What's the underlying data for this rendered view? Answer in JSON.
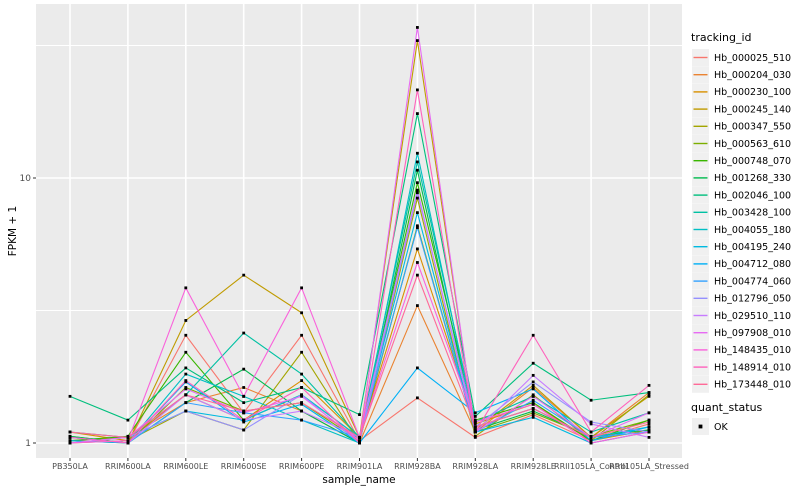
{
  "chart_data": {
    "type": "line",
    "title": "",
    "xlabel": "sample_name",
    "ylabel": "FPKM + 1",
    "y_scale": "log10",
    "y_ticks": [
      1,
      10
    ],
    "y_minor_ticks": [
      3.162,
      31.62
    ],
    "ylim": [
      0.95,
      40
    ],
    "grid": true,
    "legend_position": "right",
    "legend_title": "tracking_id",
    "quant_legend": {
      "title": "quant_status",
      "items": [
        "OK"
      ],
      "marker_color": "#000000"
    },
    "point_color": "#000000",
    "panel_background": "#EBEBEB",
    "grid_color": "#FFFFFF",
    "tick_label_color": "#4D4D4D",
    "categories": [
      "PB350LA",
      "RRIM600LA",
      "RRIM600LE",
      "RRIM600SE",
      "RRIM600PE",
      "RRIM901LA",
      "RRIM928BA",
      "RRIM928LA",
      "RRIM928LE",
      "RRII105LA_Control",
      "RRII105LA_Stressed"
    ],
    "series": [
      {
        "name": "Hb_000025_510",
        "color": "#F8766D",
        "values": [
          1.05,
          1.0,
          2.55,
          1.3,
          2.55,
          1.02,
          1.48,
          1.05,
          1.28,
          1.02,
          1.18
        ]
      },
      {
        "name": "Hb_000204_030",
        "color": "#EA8331",
        "values": [
          1.02,
          1.05,
          1.42,
          1.62,
          1.32,
          1.0,
          3.3,
          1.1,
          1.62,
          1.05,
          1.55
        ]
      },
      {
        "name": "Hb_000230_100",
        "color": "#D89000",
        "values": [
          1.1,
          1.02,
          1.52,
          1.22,
          1.72,
          1.05,
          5.4,
          1.18,
          1.4,
          1.02,
          1.12
        ]
      },
      {
        "name": "Hb_000245_140",
        "color": "#C09B00",
        "values": [
          1.02,
          1.0,
          2.9,
          4.3,
          3.1,
          1.05,
          33.0,
          1.12,
          1.65,
          1.05,
          1.5
        ]
      },
      {
        "name": "Hb_000347_550",
        "color": "#A3A500",
        "values": [
          1.0,
          1.02,
          1.32,
          1.12,
          2.2,
          1.0,
          8.4,
          1.06,
          1.52,
          1.02,
          1.52
        ]
      },
      {
        "name": "Hb_000563_610",
        "color": "#7CAE00",
        "values": [
          1.06,
          1.0,
          1.62,
          1.32,
          1.42,
          1.02,
          6.6,
          1.1,
          1.3,
          1.06,
          1.22
        ]
      },
      {
        "name": "Hb_000748_070",
        "color": "#39B600",
        "values": [
          1.02,
          1.06,
          2.2,
          1.22,
          1.52,
          1.05,
          9.6,
          1.22,
          1.42,
          1.02,
          1.22
        ]
      },
      {
        "name": "Hb_001268_330",
        "color": "#00BB4E",
        "values": [
          1.06,
          1.0,
          1.42,
          1.9,
          1.32,
          1.0,
          10.7,
          1.12,
          1.32,
          1.06,
          1.12
        ]
      },
      {
        "name": "Hb_002046_100",
        "color": "#00BF7D",
        "values": [
          1.5,
          1.22,
          1.92,
          1.42,
          1.62,
          1.28,
          17.5,
          1.26,
          2.0,
          1.45,
          1.55
        ]
      },
      {
        "name": "Hb_003428_100",
        "color": "#00C1A3",
        "values": [
          1.1,
          1.05,
          1.52,
          2.6,
          1.82,
          1.05,
          11.5,
          1.2,
          1.5,
          1.1,
          1.3
        ]
      },
      {
        "name": "Hb_004055_180",
        "color": "#00BFC4",
        "values": [
          1.05,
          1.0,
          1.82,
          1.5,
          1.22,
          1.0,
          12.4,
          1.15,
          1.35,
          1.05,
          1.15
        ]
      },
      {
        "name": "Hb_004195_240",
        "color": "#00BAE0",
        "values": [
          1.0,
          1.05,
          1.32,
          1.22,
          1.52,
          1.05,
          7.4,
          1.1,
          1.25,
          1.0,
          1.1
        ]
      },
      {
        "name": "Hb_004712_080",
        "color": "#00B0F6",
        "values": [
          1.02,
          1.0,
          1.7,
          1.2,
          1.4,
          1.0,
          1.92,
          1.3,
          1.6,
          1.02,
          1.15
        ]
      },
      {
        "name": "Hb_004774_060",
        "color": "#35A2FF",
        "values": [
          1.05,
          1.0,
          1.42,
          1.3,
          1.22,
          1.05,
          6.5,
          1.1,
          1.45,
          1.05,
          1.1
        ]
      },
      {
        "name": "Hb_012796_050",
        "color": "#9590FF",
        "values": [
          1.0,
          1.05,
          1.32,
          1.12,
          1.52,
          1.0,
          8.8,
          1.15,
          1.7,
          1.2,
          1.1
        ]
      },
      {
        "name": "Hb_029510_110",
        "color": "#C77CFF",
        "values": [
          1.05,
          1.0,
          1.52,
          1.22,
          1.32,
          1.05,
          9.0,
          1.1,
          1.8,
          1.18,
          1.05
        ]
      },
      {
        "name": "Hb_097908_010",
        "color": "#E76BF3",
        "values": [
          1.0,
          1.05,
          1.6,
          1.3,
          1.5,
          1.02,
          37.0,
          1.1,
          1.5,
          1.05,
          1.3
        ]
      },
      {
        "name": "Hb_148435_010",
        "color": "#FA62DB",
        "values": [
          1.0,
          1.02,
          3.85,
          1.5,
          3.85,
          1.05,
          4.8,
          1.2,
          1.4,
          1.0,
          1.1
        ]
      },
      {
        "name": "Hb_148914_010",
        "color": "#FF62BC",
        "values": [
          1.05,
          1.0,
          1.72,
          1.22,
          1.62,
          1.0,
          21.5,
          1.1,
          2.55,
          1.1,
          1.65
        ]
      },
      {
        "name": "Hb_173448_010",
        "color": "#FF6A98",
        "values": [
          1.1,
          1.05,
          1.52,
          1.32,
          1.42,
          1.05,
          4.3,
          1.15,
          1.35,
          1.05,
          1.2
        ]
      }
    ]
  }
}
